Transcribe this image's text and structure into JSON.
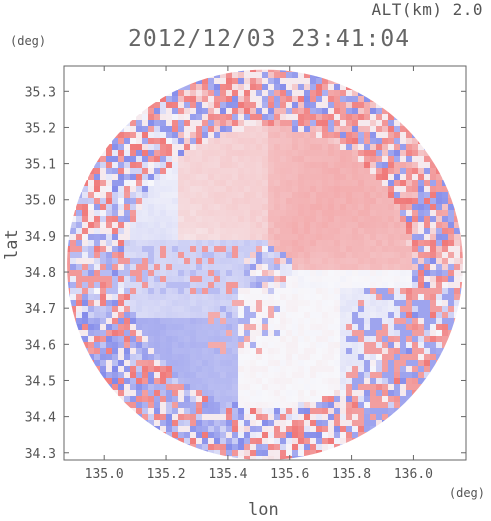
{
  "header": {
    "alt_label": "ALT(km)  2.0",
    "datetime": "2012/12/03 23:41:04"
  },
  "chart_data": {
    "type": "heatmap",
    "title": "2012/12/03 23:41:04",
    "xlabel": "lon",
    "ylabel": "lat",
    "x_unit": "(deg)",
    "y_unit": "(deg)",
    "xlim": [
      134.87,
      136.17
    ],
    "ylim": [
      34.28,
      35.37
    ],
    "x_ticks": [
      135.0,
      135.2,
      135.4,
      135.6,
      135.8,
      136.0
    ],
    "x_tick_labels": [
      "135.0",
      "135.2",
      "135.4",
      "135.6",
      "135.8",
      "136.0"
    ],
    "y_ticks": [
      34.3,
      34.4,
      34.5,
      34.6,
      34.7,
      34.8,
      34.9,
      35.0,
      35.1,
      35.2,
      35.3
    ],
    "y_tick_labels": [
      "34.3",
      "34.4",
      "34.5",
      "34.6",
      "34.7",
      "34.8",
      "34.9",
      "35.0",
      "35.1",
      "35.2",
      "35.3"
    ],
    "radar_center": {
      "lon": 135.52,
      "lat": 34.82
    },
    "radar_range_deg": {
      "lon": 0.64,
      "lat": 0.54
    },
    "colors": {
      "positive": "#f08a8a",
      "negative": "#8a8fe8",
      "neutral": "#f7f7fb"
    },
    "grid": false,
    "legend": "none"
  }
}
